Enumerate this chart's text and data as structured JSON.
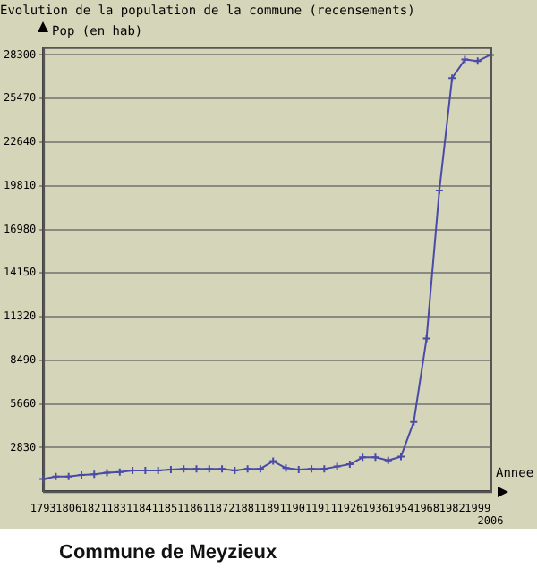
{
  "chart_data": {
    "type": "line",
    "title": "Evolution de la population de la commune (recensements)",
    "ylabel": "Pop (en hab)",
    "xlabel": "Annee",
    "categories": [
      "1793",
      null,
      "1806",
      null,
      "1821",
      null,
      "1831",
      null,
      "1841",
      null,
      "1851",
      null,
      "1861",
      null,
      "1872",
      null,
      "1881",
      null,
      "1891",
      null,
      "1901",
      null,
      "1911",
      null,
      "1926",
      null,
      "1936",
      null,
      "1954",
      null,
      "1968",
      null,
      "1982",
      null,
      "1999",
      "2006"
    ],
    "series": [
      {
        "color": "#4a4aa8",
        "values": [
          800,
          950,
          950,
          1050,
          1100,
          1200,
          1250,
          1350,
          1350,
          1350,
          1400,
          1450,
          1450,
          1450,
          1450,
          1350,
          1450,
          1450,
          1950,
          1500,
          1400,
          1450,
          1450,
          1600,
          1750,
          2200,
          2200,
          2000,
          2250,
          4500,
          9900,
          19500,
          26800,
          28000,
          27900,
          28300
        ]
      }
    ],
    "ylim": [
      0,
      28800
    ],
    "yticks": [
      2830,
      5660,
      8490,
      11320,
      14150,
      16980,
      19810,
      22640,
      25470,
      28300
    ],
    "grid": "y",
    "legend": false,
    "marker": "cross",
    "line_style": "solid",
    "annotations": [
      "Commune de Meyzieux"
    ]
  }
}
